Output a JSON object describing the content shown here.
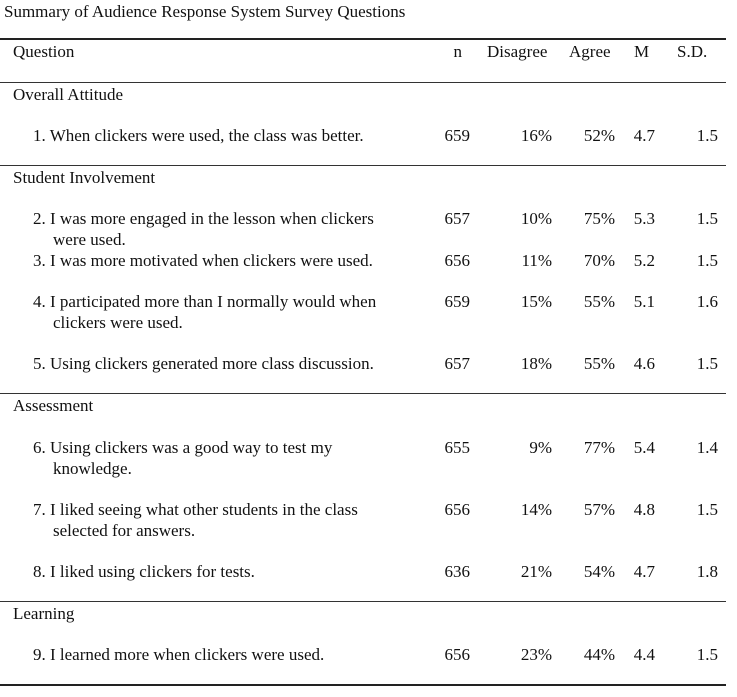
{
  "title": "Summary of Audience Response System Survey Questions",
  "headers": {
    "question": "Question",
    "n": "n",
    "disagree": "Disagree",
    "agree": "Agree",
    "m": "M",
    "sd": "S.D."
  },
  "sections": [
    {
      "name": "Overall Attitude",
      "rows": [
        {
          "line1": "1. When clickers were used, the class was better.",
          "line2": "",
          "n": "659",
          "disagree": "16%",
          "agree": "52%",
          "m": "4.7",
          "sd": "1.5"
        }
      ]
    },
    {
      "name": "Student Involvement",
      "rows": [
        {
          "line1": "2. I was more engaged in the lesson when clickers",
          "line2": "were used.",
          "n": "657",
          "disagree": "10%",
          "agree": "75%",
          "m": "5.3",
          "sd": "1.5"
        },
        {
          "line1": "3. I was more motivated when clickers were used.",
          "line2": "",
          "n": "656",
          "disagree": "11%",
          "agree": "70%",
          "m": "5.2",
          "sd": "1.5"
        },
        {
          "line1": "4. I participated more than I normally would when",
          "line2": "clickers were used.",
          "n": "659",
          "disagree": "15%",
          "agree": "55%",
          "m": "5.1",
          "sd": "1.6"
        },
        {
          "line1": "5. Using clickers generated more class discussion.",
          "line2": "",
          "n": "657",
          "disagree": "18%",
          "agree": "55%",
          "m": "4.6",
          "sd": "1.5"
        }
      ]
    },
    {
      "name": "Assessment",
      "rows": [
        {
          "line1": "6. Using clickers was a good way to test my",
          "line2": "knowledge.",
          "n": "655",
          "disagree": "9%",
          "agree": "77%",
          "m": "5.4",
          "sd": "1.4"
        },
        {
          "line1": "7. I liked seeing what other students in the class",
          "line2": "selected for answers.",
          "n": "656",
          "disagree": "14%",
          "agree": "57%",
          "m": "4.8",
          "sd": "1.5"
        },
        {
          "line1": "8. I liked using clickers for tests.",
          "line2": "",
          "n": "636",
          "disagree": "21%",
          "agree": "54%",
          "m": "4.7",
          "sd": "1.8"
        }
      ]
    },
    {
      "name": "Learning",
      "rows": [
        {
          "line1": "9. I learned more when clickers were used.",
          "line2": "",
          "n": "656",
          "disagree": "23%",
          "agree": "44%",
          "m": "4.4",
          "sd": "1.5"
        }
      ]
    }
  ]
}
